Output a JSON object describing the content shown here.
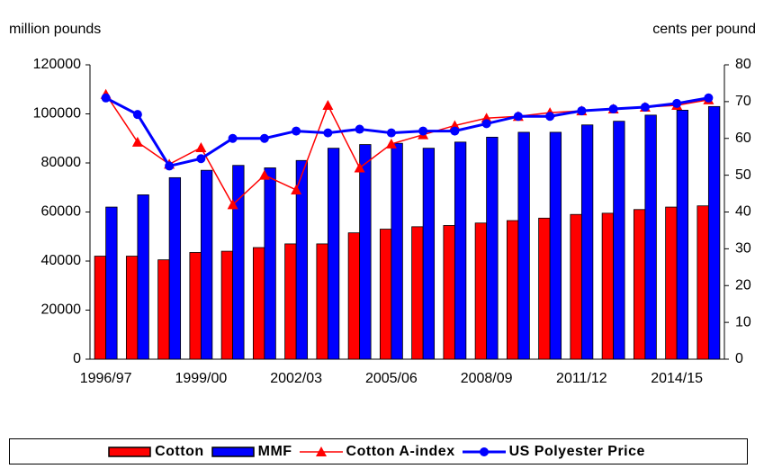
{
  "chart_data": {
    "type": "bar-line",
    "ylabel": "million pounds",
    "y2label": "cents per pound",
    "categories": [
      "1996/97",
      null,
      null,
      "1999/00",
      null,
      null,
      "2002/03",
      null,
      null,
      "2005/06",
      null,
      null,
      "2008/09",
      null,
      null,
      "2011/12",
      null,
      null,
      "2014/15",
      null
    ],
    "series": [
      {
        "name": "Cotton",
        "type": "bar",
        "color": "#ff0000",
        "values": [
          42000,
          42000,
          40500,
          43500,
          44000,
          45500,
          47000,
          47000,
          51500,
          53000,
          54000,
          54500,
          55500,
          56500,
          57500,
          59000,
          59500,
          61000,
          62000,
          62500
        ]
      },
      {
        "name": "MMF",
        "type": "bar",
        "color": "#0000ff",
        "values": [
          62000,
          67000,
          74000,
          77000,
          79000,
          78000,
          81000,
          86000,
          87500,
          88000,
          86000,
          88500,
          90500,
          92500,
          92500,
          95500,
          97000,
          99500,
          101500,
          103000
        ]
      },
      {
        "name": "Cotton A-index",
        "type": "line",
        "axis": "y2",
        "marker": "triangle",
        "color": "#ff0000",
        "values": [
          72,
          59,
          53,
          57.5,
          42,
          50,
          46,
          69,
          52,
          58.5,
          61,
          63.5,
          65.5,
          66,
          67,
          67.5,
          68,
          68.5,
          69,
          70.5
        ]
      },
      {
        "name": "US Polyester Price",
        "type": "line",
        "axis": "y2",
        "marker": "circle",
        "color": "#0000ff",
        "values": [
          71,
          66.5,
          52.5,
          54.5,
          60,
          60,
          62,
          61.5,
          62.5,
          61.5,
          62,
          62,
          64,
          66,
          66,
          67.5,
          68,
          68.5,
          69.5,
          71
        ]
      }
    ],
    "ylim": [
      0,
      120000
    ],
    "yticks": [
      0,
      20000,
      40000,
      60000,
      80000,
      100000,
      120000
    ],
    "y2lim": [
      0,
      80
    ],
    "y2ticks": [
      0,
      10,
      20,
      30,
      40,
      50,
      60,
      70,
      80
    ],
    "grid": false
  }
}
